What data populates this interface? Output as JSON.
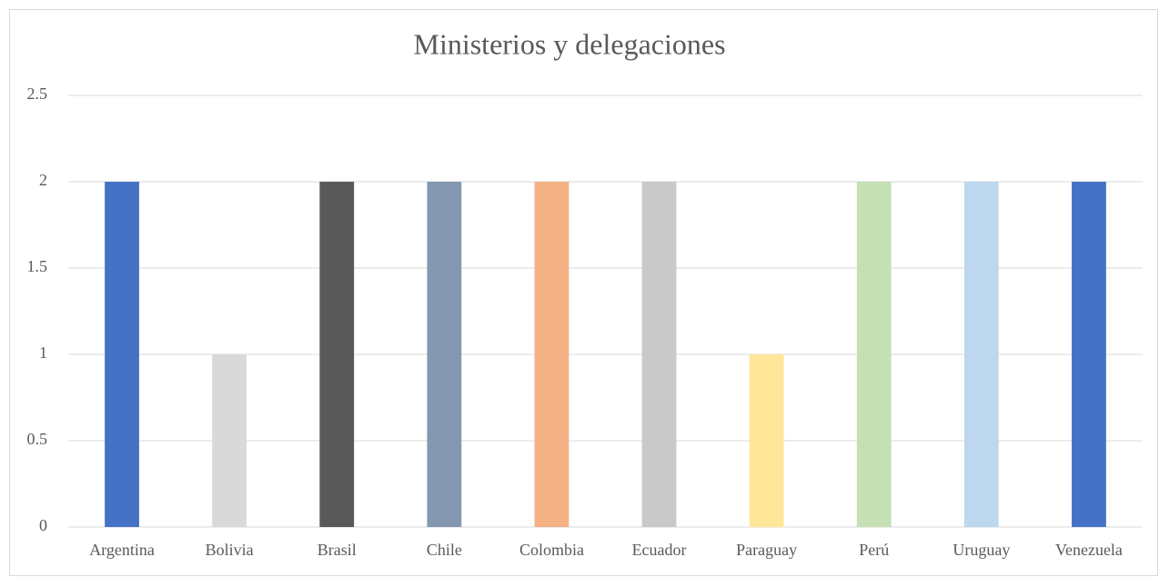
{
  "chart_data": {
    "type": "bar",
    "title": "Ministerios y delegaciones",
    "categories": [
      "Argentina",
      "Bolivia",
      "Brasil",
      "Chile",
      "Colombia",
      "Ecuador",
      "Paraguay",
      "Perú",
      "Uruguay",
      "Venezuela"
    ],
    "values": [
      2,
      1,
      2,
      2,
      2,
      2,
      1,
      2,
      2,
      2
    ],
    "colors": [
      "#4472c4",
      "#d9d9d9",
      "#595959",
      "#8497b0",
      "#f4b183",
      "#c9c9c9",
      "#ffe699",
      "#c5e0b4",
      "#bdd7ee",
      "#4472c4"
    ],
    "ylim": [
      0,
      2.5
    ],
    "yticks": [
      0,
      0.5,
      1,
      1.5,
      2,
      2.5
    ],
    "grid": true
  }
}
